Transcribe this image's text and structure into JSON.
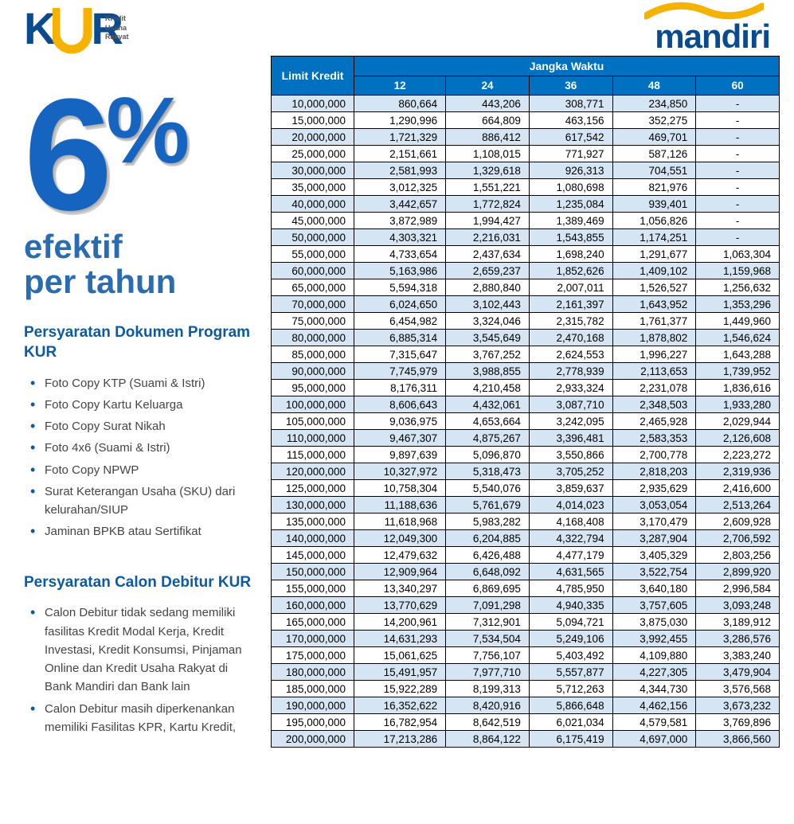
{
  "logos": {
    "kur": {
      "k": "K",
      "r": "R",
      "sub1": "Kredit",
      "sub2": "Usaha",
      "sub3": "Rakyat"
    },
    "mandiri": {
      "word": "mandiri"
    }
  },
  "rate": {
    "six": "6",
    "pct": "%",
    "line1": "efektif",
    "line2": "per tahun"
  },
  "docs": {
    "title": "Persyaratan Dokumen Program KUR",
    "items": [
      "Foto Copy KTP (Suami & Istri)",
      "Foto Copy Kartu Keluarga",
      "Foto Copy Surat Nikah",
      "Foto 4x6 (Suami & Istri)",
      "Foto Copy NPWP",
      "Surat Keterangan Usaha (SKU) dari kelurahan/SIUP",
      "Jaminan BPKB atau Sertifikat"
    ]
  },
  "debitur": {
    "title": "Persyaratan Calon  Debitur KUR",
    "items": [
      "Calon Debitur tidak sedang memiliki fasilitas Kredit Modal Kerja, Kredit Investasi, Kredit Konsumsi, Pinjaman Online dan Kredit Usaha Rakyat di Bank Mandiri dan Bank lain",
      "Calon Debitur masih diperkenankan memiliki Fasilitas KPR, Kartu Kredit,"
    ]
  },
  "table": {
    "header_limit": "Limit Kredit",
    "header_jw": "Jangka Waktu",
    "months": [
      "12",
      "24",
      "36",
      "48",
      "60"
    ],
    "colors": {
      "header_bg": "#0070c0",
      "header_fg": "#ffffff",
      "row_odd_bg": "#d6e5f3",
      "row_even_bg": "#ffffff",
      "border": "#000000"
    },
    "rows": [
      {
        "limit": "10,000,000",
        "v": [
          "860,664",
          "443,206",
          "308,771",
          "234,850",
          "-"
        ]
      },
      {
        "limit": "15,000,000",
        "v": [
          "1,290,996",
          "664,809",
          "463,156",
          "352,275",
          "-"
        ]
      },
      {
        "limit": "20,000,000",
        "v": [
          "1,721,329",
          "886,412",
          "617,542",
          "469,701",
          "-"
        ]
      },
      {
        "limit": "25,000,000",
        "v": [
          "2,151,661",
          "1,108,015",
          "771,927",
          "587,126",
          "-"
        ]
      },
      {
        "limit": "30,000,000",
        "v": [
          "2,581,993",
          "1,329,618",
          "926,313",
          "704,551",
          "-"
        ]
      },
      {
        "limit": "35,000,000",
        "v": [
          "3,012,325",
          "1,551,221",
          "1,080,698",
          "821,976",
          "-"
        ]
      },
      {
        "limit": "40,000,000",
        "v": [
          "3,442,657",
          "1,772,824",
          "1,235,084",
          "939,401",
          "-"
        ]
      },
      {
        "limit": "45,000,000",
        "v": [
          "3,872,989",
          "1,994,427",
          "1,389,469",
          "1,056,826",
          "-"
        ]
      },
      {
        "limit": "50,000,000",
        "v": [
          "4,303,321",
          "2,216,031",
          "1,543,855",
          "1,174,251",
          "-"
        ]
      },
      {
        "limit": "55,000,000",
        "v": [
          "4,733,654",
          "2,437,634",
          "1,698,240",
          "1,291,677",
          "1,063,304"
        ]
      },
      {
        "limit": "60,000,000",
        "v": [
          "5,163,986",
          "2,659,237",
          "1,852,626",
          "1,409,102",
          "1,159,968"
        ]
      },
      {
        "limit": "65,000,000",
        "v": [
          "5,594,318",
          "2,880,840",
          "2,007,011",
          "1,526,527",
          "1,256,632"
        ]
      },
      {
        "limit": "70,000,000",
        "v": [
          "6,024,650",
          "3,102,443",
          "2,161,397",
          "1,643,952",
          "1,353,296"
        ]
      },
      {
        "limit": "75,000,000",
        "v": [
          "6,454,982",
          "3,324,046",
          "2,315,782",
          "1,761,377",
          "1,449,960"
        ]
      },
      {
        "limit": "80,000,000",
        "v": [
          "6,885,314",
          "3,545,649",
          "2,470,168",
          "1,878,802",
          "1,546,624"
        ]
      },
      {
        "limit": "85,000,000",
        "v": [
          "7,315,647",
          "3,767,252",
          "2,624,553",
          "1,996,227",
          "1,643,288"
        ]
      },
      {
        "limit": "90,000,000",
        "v": [
          "7,745,979",
          "3,988,855",
          "2,778,939",
          "2,113,653",
          "1,739,952"
        ]
      },
      {
        "limit": "95,000,000",
        "v": [
          "8,176,311",
          "4,210,458",
          "2,933,324",
          "2,231,078",
          "1,836,616"
        ]
      },
      {
        "limit": "100,000,000",
        "v": [
          "8,606,643",
          "4,432,061",
          "3,087,710",
          "2,348,503",
          "1,933,280"
        ]
      },
      {
        "limit": "105,000,000",
        "v": [
          "9,036,975",
          "4,653,664",
          "3,242,095",
          "2,465,928",
          "2,029,944"
        ]
      },
      {
        "limit": "110,000,000",
        "v": [
          "9,467,307",
          "4,875,267",
          "3,396,481",
          "2,583,353",
          "2,126,608"
        ]
      },
      {
        "limit": "115,000,000",
        "v": [
          "9,897,639",
          "5,096,870",
          "3,550,866",
          "2,700,778",
          "2,223,272"
        ]
      },
      {
        "limit": "120,000,000",
        "v": [
          "10,327,972",
          "5,318,473",
          "3,705,252",
          "2,818,203",
          "2,319,936"
        ]
      },
      {
        "limit": "125,000,000",
        "v": [
          "10,758,304",
          "5,540,076",
          "3,859,637",
          "2,935,629",
          "2,416,600"
        ]
      },
      {
        "limit": "130,000,000",
        "v": [
          "11,188,636",
          "5,761,679",
          "4,014,023",
          "3,053,054",
          "2,513,264"
        ]
      },
      {
        "limit": "135,000,000",
        "v": [
          "11,618,968",
          "5,983,282",
          "4,168,408",
          "3,170,479",
          "2,609,928"
        ]
      },
      {
        "limit": "140,000,000",
        "v": [
          "12,049,300",
          "6,204,885",
          "4,322,794",
          "3,287,904",
          "2,706,592"
        ]
      },
      {
        "limit": "145,000,000",
        "v": [
          "12,479,632",
          "6,426,488",
          "4,477,179",
          "3,405,329",
          "2,803,256"
        ]
      },
      {
        "limit": "150,000,000",
        "v": [
          "12,909,964",
          "6,648,092",
          "4,631,565",
          "3,522,754",
          "2,899,920"
        ]
      },
      {
        "limit": "155,000,000",
        "v": [
          "13,340,297",
          "6,869,695",
          "4,785,950",
          "3,640,180",
          "2,996,584"
        ]
      },
      {
        "limit": "160,000,000",
        "v": [
          "13,770,629",
          "7,091,298",
          "4,940,335",
          "3,757,605",
          "3,093,248"
        ]
      },
      {
        "limit": "165,000,000",
        "v": [
          "14,200,961",
          "7,312,901",
          "5,094,721",
          "3,875,030",
          "3,189,912"
        ]
      },
      {
        "limit": "170,000,000",
        "v": [
          "14,631,293",
          "7,534,504",
          "5,249,106",
          "3,992,455",
          "3,286,576"
        ]
      },
      {
        "limit": "175,000,000",
        "v": [
          "15,061,625",
          "7,756,107",
          "5,403,492",
          "4,109,880",
          "3,383,240"
        ]
      },
      {
        "limit": "180,000,000",
        "v": [
          "15,491,957",
          "7,977,710",
          "5,557,877",
          "4,227,305",
          "3,479,904"
        ]
      },
      {
        "limit": "185,000,000",
        "v": [
          "15,922,289",
          "8,199,313",
          "5,712,263",
          "4,344,730",
          "3,576,568"
        ]
      },
      {
        "limit": "190,000,000",
        "v": [
          "16,352,622",
          "8,420,916",
          "5,866,648",
          "4,462,156",
          "3,673,232"
        ]
      },
      {
        "limit": "195,000,000",
        "v": [
          "16,782,954",
          "8,642,519",
          "6,021,034",
          "4,579,581",
          "3,769,896"
        ]
      },
      {
        "limit": "200,000,000",
        "v": [
          "17,213,286",
          "8,864,122",
          "6,175,419",
          "4,697,000",
          "3,866,560"
        ]
      }
    ]
  }
}
